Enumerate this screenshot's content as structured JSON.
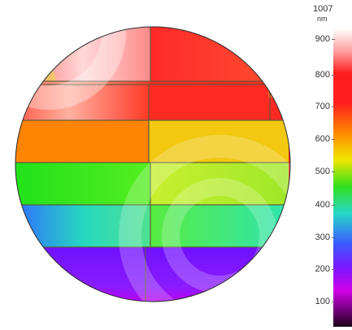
{
  "scale": {
    "max_label": "1007",
    "unit": "nm",
    "ticks": [
      "900",
      "800",
      "700",
      "600",
      "500",
      "400",
      "300",
      "200",
      "100"
    ]
  },
  "colors": {
    "white": "#ffffff",
    "red": "#ff1e1e",
    "orange": "#ff8a00",
    "yellow": "#f0e600",
    "green": "#31e01e",
    "cyan": "#28d8c8",
    "blue": "#3a5cff",
    "violet": "#7a18ff",
    "magenta": "#d000e8",
    "black": "#1a0018"
  }
}
